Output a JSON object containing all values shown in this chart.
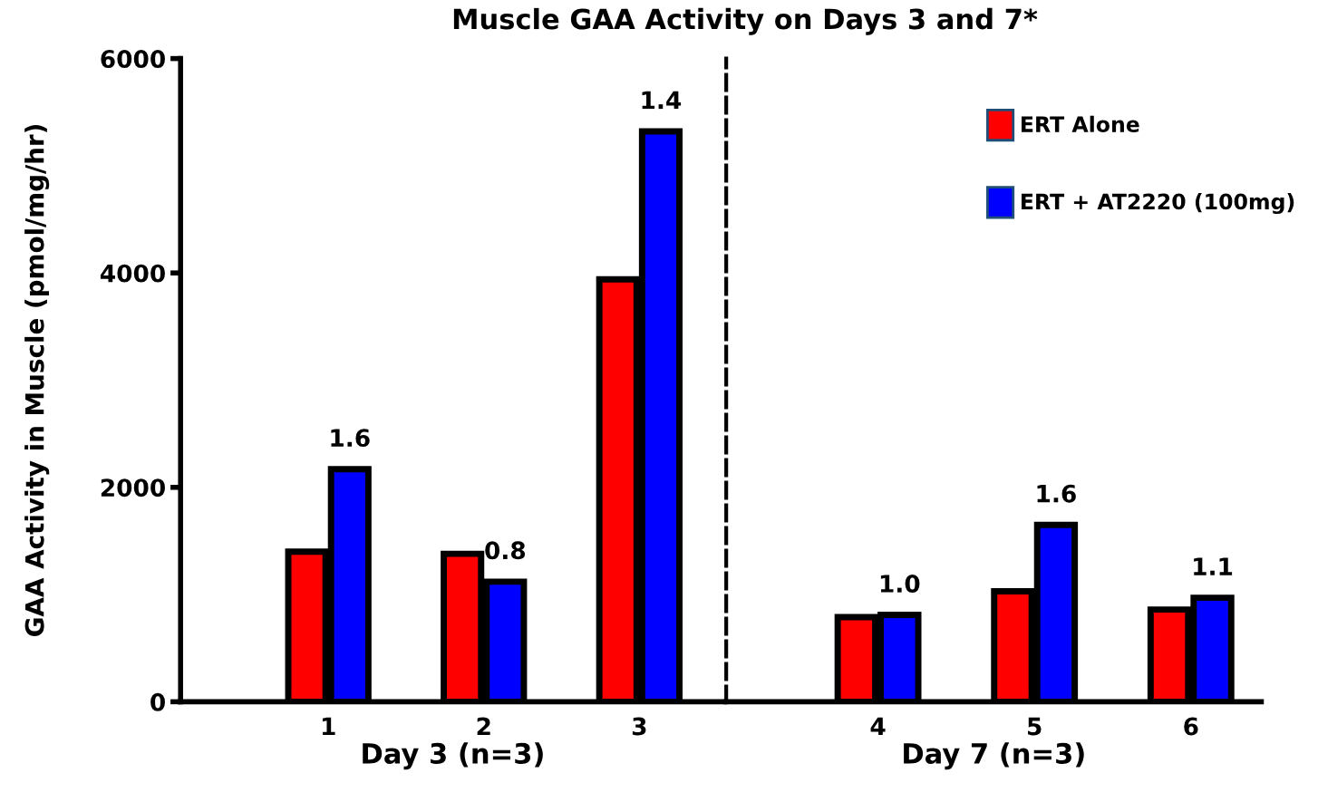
{
  "chart_data": [
    {
      "type": "bar",
      "title": "Muscle GAA Activity on Days 3 and 7*",
      "xlabel": "Day 3 (n=3)",
      "ylabel": "GAA Activity in Muscle (pmol/mg/hr)",
      "categories": [
        "1",
        "2",
        "3"
      ],
      "series": [
        {
          "color": "#ff0000",
          "values": [
            1400,
            1380,
            3940
          ]
        },
        {
          "color": "#0000ff",
          "values": [
            2170,
            1120,
            5320
          ]
        }
      ],
      "annotations": [
        {
          "text": "1.6",
          "x": "1",
          "y": 2170
        },
        {
          "text": "0.8",
          "x": "2",
          "y": 1120
        },
        {
          "text": "1.4",
          "x": "3",
          "y": 5320
        }
      ],
      "ylim": [
        0,
        6000
      ],
      "yticks": [
        0,
        2000,
        4000,
        6000
      ],
      "grid": false,
      "legend": false
    },
    {
      "type": "bar",
      "xlabel": "Day 7 (n=3)",
      "categories": [
        "4",
        "5",
        "6"
      ],
      "series": [
        {
          "name": "ERT Alone",
          "color": "#ff0000",
          "values": [
            790,
            1030,
            860
          ]
        },
        {
          "name": "ERT + AT2220 (100mg)",
          "color": "#0000ff",
          "values": [
            810,
            1650,
            970
          ]
        }
      ],
      "annotations": [
        {
          "text": "1.0",
          "x": "4",
          "y": 810
        },
        {
          "text": "1.6",
          "x": "5",
          "y": 1650
        },
        {
          "text": "1.1",
          "x": "6",
          "y": 970
        }
      ],
      "ylim": [
        0,
        6000
      ],
      "yticks": [
        0,
        2000,
        4000,
        6000
      ],
      "tick_labels": "x",
      "grid": false,
      "legend": "top right"
    }
  ]
}
